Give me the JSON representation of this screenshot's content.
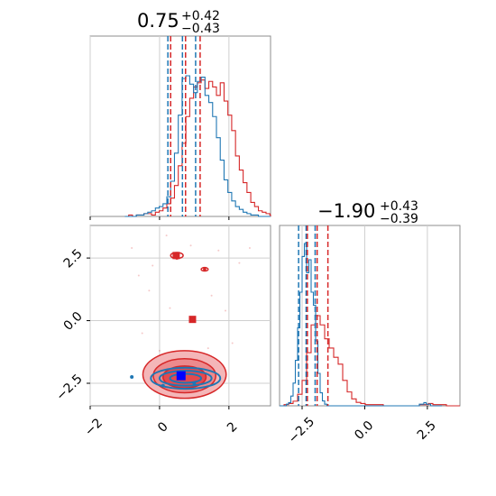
{
  "colors": {
    "red": "#d62728",
    "blue": "#1f77b4",
    "grid": "#cfcfcf",
    "frame": "#8c8c8c"
  },
  "chart_data": [
    {
      "type": "histogram",
      "panel": "top-left",
      "title": {
        "main": "0.75",
        "plus": "+0.42",
        "minus": "−0.43"
      },
      "xlim": [
        -2.0,
        3.2
      ],
      "xticks": [
        -2,
        0,
        2
      ],
      "tick_labels": [],
      "red_quantile_lines": [
        0.32,
        0.75,
        1.17
      ],
      "blue_quantile_lines": [
        0.24,
        0.66,
        1.04
      ],
      "red_series": {
        "name": "",
        "edges_start": -1.0,
        "bin_width": 0.11,
        "counts": [
          0,
          1,
          0,
          1,
          1,
          2,
          2,
          1,
          3,
          4,
          6,
          9,
          13,
          22,
          36,
          52,
          71,
          84,
          92,
          95,
          97,
          91,
          96,
          92,
          86,
          95,
          82,
          72,
          61,
          43,
          33,
          24,
          17,
          10,
          7,
          4,
          3,
          2,
          1,
          1
        ]
      },
      "blue_series": {
        "name": "",
        "edges_start": -1.0,
        "bin_width": 0.11,
        "counts": [
          0,
          0,
          0,
          1,
          1,
          2,
          3,
          4,
          6,
          7,
          9,
          14,
          25,
          45,
          72,
          98,
          100,
          94,
          88,
          96,
          99,
          86,
          81,
          71,
          56,
          40,
          26,
          17,
          11,
          7,
          5,
          3,
          2,
          1,
          1,
          0,
          0,
          0,
          0,
          0
        ]
      }
    },
    {
      "type": "scatter",
      "panel": "bottom-left",
      "xlim": [
        -2.0,
        3.2
      ],
      "ylim": [
        -3.4,
        3.8
      ],
      "xticks": [
        -2,
        0,
        2
      ],
      "yticks": [
        -2.5,
        0.0,
        2.5
      ],
      "xtick_labels": [
        "−2",
        "0",
        "2"
      ],
      "ytick_labels": [
        "−2.5",
        "0.0",
        "2.5"
      ],
      "red_points": [
        [
          0.45,
          2.6
        ],
        [
          0.5,
          2.5
        ],
        [
          0.95,
          0.1
        ],
        [
          1.3,
          2.05
        ],
        [
          0.7,
          -2.2
        ]
      ],
      "blue_points": [
        [
          0.65,
          -2.2
        ],
        [
          -0.8,
          -2.25
        ],
        [
          0.1,
          -2.6
        ],
        [
          1.0,
          -2.5
        ]
      ],
      "red_marker": [
        0.95,
        0.0
      ],
      "blue_marker": [
        0.62,
        -2.2
      ],
      "red_contours": [
        {
          "cx": 0.72,
          "cy": -2.15,
          "rx": 1.2,
          "ry": 0.95
        },
        {
          "cx": 0.72,
          "cy": -2.2,
          "rx": 0.9,
          "ry": 0.68
        },
        {
          "cx": 0.72,
          "cy": -2.25,
          "rx": 0.62,
          "ry": 0.44
        }
      ],
      "blue_contours": [
        {
          "cx": 0.75,
          "cy": -2.3,
          "rx": 1.0,
          "ry": 0.42
        },
        {
          "cx": 0.75,
          "cy": -2.3,
          "rx": 0.75,
          "ry": 0.3
        },
        {
          "cx": 0.75,
          "cy": -2.3,
          "rx": 0.45,
          "ry": 0.18
        }
      ]
    },
    {
      "type": "histogram",
      "panel": "bottom-right",
      "title": {
        "main": "−1.90",
        "plus": "+0.43",
        "minus": "−0.39"
      },
      "xlim": [
        -3.4,
        3.8
      ],
      "xticks": [
        -2.5,
        0.0,
        2.5
      ],
      "xtick_labels": [
        "−2.5",
        "0.0",
        "2.5"
      ],
      "red_quantile_lines": [
        -2.29,
        -1.9,
        -1.47
      ],
      "blue_quantile_lines": [
        -2.64,
        -2.34,
        -1.98
      ],
      "red_series": {
        "name": "",
        "edges_start": -3.4,
        "bin_width": 0.18,
        "counts": [
          0,
          1,
          2,
          4,
          10,
          22,
          46,
          70,
          78,
          70,
          58,
          50,
          42,
          36,
          22,
          12,
          6,
          3,
          2,
          1,
          1,
          1,
          1,
          0,
          0,
          0,
          0,
          0,
          0,
          0,
          0,
          1,
          1,
          2,
          1,
          1,
          1,
          0,
          0,
          0
        ]
      },
      "blue_series": {
        "name": "",
        "edges_start": -3.4,
        "bin_width": 0.09,
        "counts": [
          0,
          0,
          0,
          1,
          2,
          6,
          14,
          28,
          48,
          70,
          92,
          100,
          82,
          90,
          70,
          62,
          40,
          20,
          8,
          3,
          1,
          0,
          0,
          0,
          0,
          0,
          0,
          0,
          0,
          0,
          0,
          0,
          0,
          0,
          0,
          0,
          0,
          0,
          0,
          0,
          0,
          0,
          0,
          0,
          0,
          0,
          0,
          0,
          0,
          0,
          0,
          0,
          0,
          0,
          0,
          0,
          0,
          0,
          0,
          0,
          0,
          0,
          1,
          1,
          2,
          1,
          1,
          0,
          0,
          0,
          0,
          0
        ]
      }
    }
  ]
}
